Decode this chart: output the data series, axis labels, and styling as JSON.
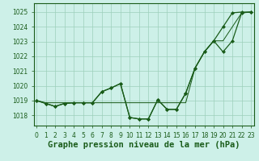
{
  "title": "Graphe pression niveau de la mer (hPa)",
  "background_color": "#cdf0e8",
  "grid_color": "#9dcfbb",
  "line_color": "#1a5c1a",
  "x_ticks": [
    0,
    1,
    2,
    3,
    4,
    5,
    6,
    7,
    8,
    9,
    10,
    11,
    12,
    13,
    14,
    15,
    16,
    17,
    18,
    19,
    20,
    21,
    22,
    23
  ],
  "y_ticks": [
    1018,
    1019,
    1020,
    1021,
    1022,
    1023,
    1024,
    1025
  ],
  "ylim": [
    1017.3,
    1025.6
  ],
  "xlim": [
    -0.3,
    23.3
  ],
  "series_main": [
    1019.0,
    1018.8,
    1018.6,
    1018.8,
    1018.85,
    1018.85,
    1018.85,
    1019.6,
    1019.85,
    1020.15,
    1017.85,
    1017.75,
    1017.75,
    1019.05,
    1018.4,
    1018.4,
    1019.5,
    1021.2,
    1022.3,
    1023.05,
    1024.0,
    1024.95,
    1025.0,
    1025.0
  ],
  "series_dip": [
    1019.0,
    1018.8,
    1018.6,
    1018.8,
    1018.85,
    1018.85,
    1018.85,
    1019.6,
    1019.85,
    1020.15,
    1017.85,
    1017.75,
    1017.75,
    1019.05,
    1018.4,
    1018.4,
    1019.5,
    1021.2,
    1022.3,
    1023.05,
    1022.3,
    1023.05,
    1024.95,
    1025.0
  ],
  "series_flat": [
    1019.0,
    1018.85,
    1018.85,
    1018.85,
    1018.85,
    1018.85,
    1018.85,
    1018.85,
    1018.85,
    1018.85,
    1018.85,
    1018.85,
    1018.85,
    1018.85,
    1018.85,
    1018.85,
    1018.85,
    1021.2,
    1022.3,
    1023.05,
    1023.05,
    1024.0,
    1024.95,
    1025.0
  ],
  "marker": "D",
  "marker_size": 2.0,
  "linewidth": 0.9,
  "title_fontsize": 7.5,
  "tick_fontsize": 5.5
}
